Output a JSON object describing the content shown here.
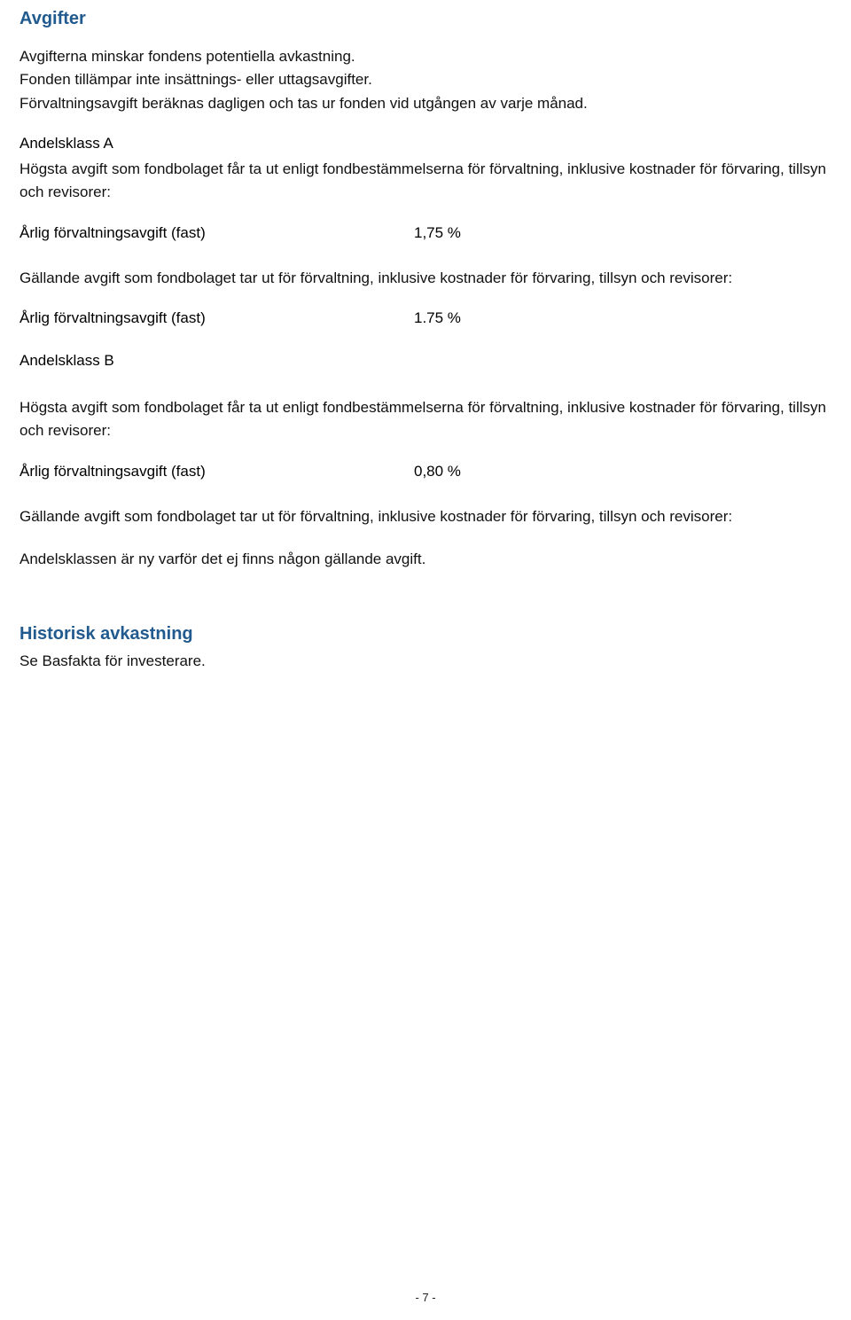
{
  "colors": {
    "heading": "#215a8e",
    "text": "#000000",
    "background": "#ffffff"
  },
  "typography": {
    "heading_fontsize_pt": 15,
    "body_fontsize_pt": 13,
    "font_family": "Arial"
  },
  "sections": {
    "avgifter": {
      "title": "Avgifter",
      "intro1": "Avgifterna minskar fondens potentiella avkastning.",
      "intro2": "Fonden tillämpar inte insättnings- eller uttagsavgifter.",
      "intro3": "Förvaltningsavgift beräknas dagligen och tas ur fonden vid utgången av varje månad."
    },
    "andelsklassA": {
      "title": "Andelsklass A",
      "max_text": "Högsta avgift som fondbolaget får ta ut enligt fondbestämmelserna för förvaltning, inklusive kostnader för förvaring, tillsyn och revisorer:",
      "max_row_label": "Årlig förvaltningsavgift (fast)",
      "max_row_value": "1,75 %",
      "current_text": "Gällande avgift som fondbolaget tar ut för förvaltning, inklusive kostnader för förvaring, tillsyn och revisorer:",
      "current_row_label": "Årlig förvaltningsavgift (fast)",
      "current_row_value": "1.75 %"
    },
    "andelsklassB": {
      "title": "Andelsklass B",
      "max_text": "Högsta avgift som fondbolaget får ta ut enligt fondbestämmelserna för förvaltning, inklusive kostnader för förvaring, tillsyn och revisorer:",
      "max_row_label": "Årlig förvaltningsavgift (fast)",
      "max_row_value": "0,80 %",
      "current_text": "Gällande avgift som fondbolaget tar ut för förvaltning, inklusive kostnader för förvaring, tillsyn och revisorer:",
      "note": "Andelsklassen är ny varför det ej finns någon gällande avgift."
    },
    "historisk": {
      "title": "Historisk avkastning",
      "text": "Se Basfakta för investerare."
    }
  },
  "page_number": "- 7 -"
}
